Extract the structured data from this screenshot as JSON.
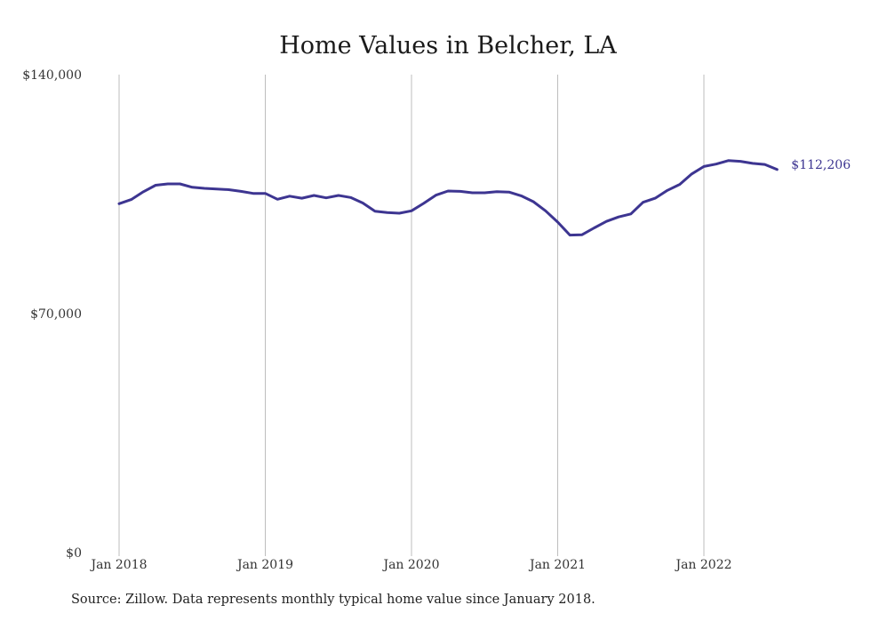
{
  "source_note": "Source: Zillow. Data represents monthly typical home value since January 2018.",
  "colors": {
    "line": "#3d3591",
    "grid": "#bdbdbd",
    "text": "#222222"
  },
  "chart_data": {
    "type": "line",
    "title": "Home Values in Belcher, LA",
    "xlabel": "",
    "ylabel": "",
    "ylim": [
      0,
      140000
    ],
    "yticks": [
      0,
      70000,
      140000
    ],
    "ytick_labels": [
      "$0",
      "$70,000",
      "$140,000"
    ],
    "xticks": [
      "2018-01",
      "2019-01",
      "2020-01",
      "2021-01",
      "2022-01"
    ],
    "xtick_labels": [
      "Jan 2018",
      "Jan 2019",
      "Jan 2020",
      "Jan 2021",
      "Jan 2022"
    ],
    "grid": "vertical",
    "end_label": "$112,206",
    "series": [
      {
        "name": "",
        "x": [
          "2018-01",
          "2018-02",
          "2018-03",
          "2018-04",
          "2018-05",
          "2018-06",
          "2018-07",
          "2018-08",
          "2018-09",
          "2018-10",
          "2018-11",
          "2018-12",
          "2019-01",
          "2019-02",
          "2019-03",
          "2019-04",
          "2019-05",
          "2019-06",
          "2019-07",
          "2019-08",
          "2019-09",
          "2019-10",
          "2019-11",
          "2019-12",
          "2020-01",
          "2020-02",
          "2020-03",
          "2020-04",
          "2020-05",
          "2020-06",
          "2020-07",
          "2020-08",
          "2020-09",
          "2020-10",
          "2020-11",
          "2020-12",
          "2021-01",
          "2021-02",
          "2021-03",
          "2021-04",
          "2021-05",
          "2021-06",
          "2021-07",
          "2021-08",
          "2021-09",
          "2021-10",
          "2021-11",
          "2021-12",
          "2022-01",
          "2022-02",
          "2022-03",
          "2022-04",
          "2022-05",
          "2022-06",
          "2022-07"
        ],
        "values": [
          102200,
          103400,
          105700,
          107600,
          108000,
          108000,
          107000,
          106700,
          106500,
          106300,
          105800,
          105200,
          105200,
          103500,
          104400,
          103800,
          104600,
          103900,
          104600,
          104000,
          102400,
          100000,
          99600,
          99400,
          100100,
          102300,
          104700,
          105900,
          105800,
          105400,
          105400,
          105700,
          105600,
          104500,
          102800,
          100100,
          96800,
          93000,
          93100,
          95100,
          97000,
          98300,
          99200,
          102600,
          103800,
          106100,
          107800,
          110900,
          113100,
          113800,
          114800,
          114600,
          114000,
          113700,
          112206
        ]
      }
    ]
  }
}
